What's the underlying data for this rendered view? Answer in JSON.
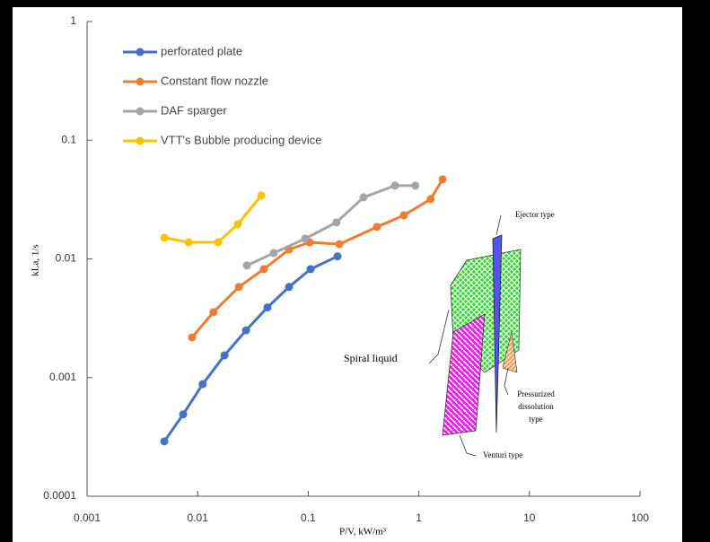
{
  "chart_data": {
    "type": "line",
    "x_label": "P/V, kW/m³",
    "y_label": "kLa, 1/s",
    "x_scale": "log",
    "y_scale": "log",
    "xlim": [
      0.001,
      100
    ],
    "ylim": [
      0.0001,
      1
    ],
    "xticks": [
      0.001,
      0.01,
      0.1,
      1,
      10,
      100
    ],
    "yticks": [
      0.0001,
      0.001,
      0.01,
      0.1,
      1
    ],
    "legend": "upper left",
    "series": [
      {
        "name": "perforated plate",
        "color": "#4472c4",
        "x": [
          0.005,
          0.0074,
          0.0111,
          0.0175,
          0.0274,
          0.0428,
          0.067,
          0.105,
          0.184
        ],
        "values": [
          0.00029,
          0.00049,
          0.00088,
          0.00154,
          0.0025,
          0.0039,
          0.0058,
          0.0082,
          0.0105
        ]
      },
      {
        "name": "Constant flow nozzle",
        "color": "#ed7d31",
        "x": [
          0.0089,
          0.0139,
          0.0236,
          0.0397,
          0.067,
          0.103,
          0.191,
          0.419,
          0.733,
          1.28,
          1.64
        ],
        "values": [
          0.00218,
          0.00356,
          0.0058,
          0.0082,
          0.012,
          0.0138,
          0.0133,
          0.0186,
          0.0233,
          0.0319,
          0.0468
        ]
      },
      {
        "name": "DAF sparger",
        "color": "#a5a5a5",
        "x": [
          0.0279,
          0.0488,
          0.0938,
          0.18,
          0.316,
          0.608,
          0.93
        ],
        "values": [
          0.0088,
          0.0112,
          0.0148,
          0.0203,
          0.033,
          0.0414,
          0.0414
        ]
      },
      {
        "name": "VTT's Bubble producing device",
        "color": "#ffc000",
        "x": [
          0.005,
          0.0083,
          0.0153,
          0.0231,
          0.0376
        ],
        "values": [
          0.0151,
          0.0138,
          0.0138,
          0.0196,
          0.0342
        ]
      }
    ],
    "annotations": {
      "ejector": "Ejector type",
      "spiral": "Spiral liquid",
      "pressurized": [
        "Pressurized",
        "dissolution",
        "type"
      ],
      "venturi": "Venturi type"
    }
  }
}
